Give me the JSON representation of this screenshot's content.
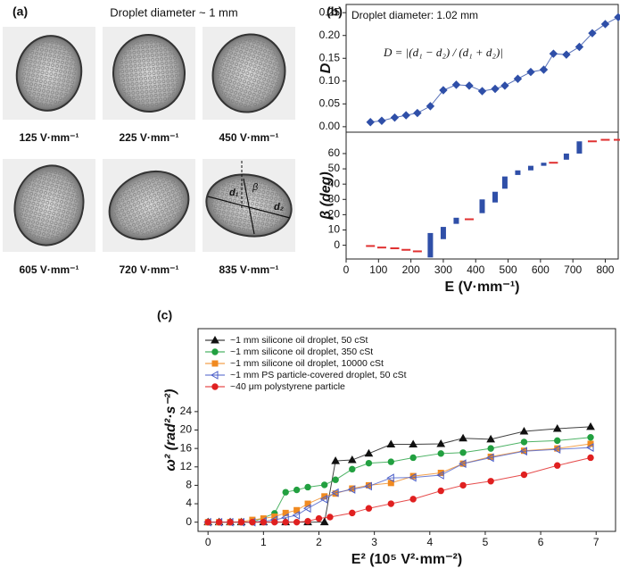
{
  "panel_a": {
    "label": "(a)",
    "title": "Droplet diameter ~ 1 mm",
    "captions": [
      "125 V·mm⁻¹",
      "225 V·mm⁻¹",
      "450 V·mm⁻¹",
      "605 V·mm⁻¹",
      "720 V·mm⁻¹",
      "835 V·mm⁻¹"
    ],
    "symbols": [
      "d₁",
      "d₂",
      "β"
    ]
  },
  "chart_data": [
    {
      "type": "line",
      "panel_label": "(b)",
      "ylabel": "D",
      "annotations": [
        "Droplet diameter: 1.02 mm",
        "D = |(d₁ − d₂) / (d₁ + d₂)|"
      ],
      "xlim": [
        0,
        840
      ],
      "ylim": [
        -0.012,
        0.268
      ],
      "yticks": [
        {
          "value": 0,
          "label": "0.00"
        },
        {
          "value": 0.05,
          "label": "0.05"
        },
        {
          "value": 0.1,
          "label": "0.10"
        },
        {
          "value": 0.15,
          "label": "0.15"
        },
        {
          "value": 0.2,
          "label": "0.20"
        },
        {
          "value": 0.25,
          "label": "0.25"
        }
      ],
      "series": [
        {
          "color": "#2f4fa8",
          "marker": "diamond",
          "x": [
            75,
            110,
            150,
            185,
            220,
            260,
            300,
            340,
            380,
            420,
            460,
            490,
            530,
            570,
            610,
            640,
            680,
            720,
            760,
            800,
            840
          ],
          "values": [
            0.01,
            0.013,
            0.02,
            0.025,
            0.03,
            0.045,
            0.08,
            0.092,
            0.09,
            0.078,
            0.083,
            0.09,
            0.105,
            0.12,
            0.125,
            0.16,
            0.158,
            0.175,
            0.205,
            0.225,
            0.24
          ]
        }
      ]
    },
    {
      "type": "range",
      "ylabel": "β (deg)",
      "xlabel": "E (V·mm⁻¹)",
      "xlim": [
        0,
        840
      ],
      "ylim": [
        -9,
        74
      ],
      "xticks": [
        0,
        100,
        200,
        300,
        400,
        500,
        600,
        700,
        800
      ],
      "yticks": [
        0,
        10,
        20,
        30,
        40,
        50,
        60
      ],
      "series": [
        {
          "color": "#e03030",
          "x": [
            75,
            110,
            150,
            185,
            220,
            380,
            640,
            760,
            800,
            840
          ],
          "values": [
            -0.5,
            -1.5,
            -2,
            -3,
            -4,
            17,
            54,
            68,
            69,
            69
          ]
        },
        {
          "color": "#2f4fa8",
          "x": [
            260,
            300,
            340,
            420,
            460,
            490,
            530,
            570,
            610,
            680,
            720
          ],
          "low": [
            -8,
            4,
            14,
            21,
            28,
            37,
            46,
            49,
            52,
            56,
            60
          ],
          "high": [
            8,
            12,
            18,
            30,
            35,
            45,
            49,
            52,
            54,
            60,
            68
          ]
        }
      ]
    },
    {
      "type": "line",
      "panel_label": "(c)",
      "ylabel": "ω² (rad²·s⁻²)",
      "xlabel": "E² (10⁵ V²·mm⁻²)",
      "xlim": [
        -0.18,
        7.35
      ],
      "ylim": [
        -2,
        42
      ],
      "xticks": [
        0,
        1,
        2,
        3,
        4,
        5,
        6,
        7
      ],
      "yticks": [
        0,
        4,
        8,
        12,
        16,
        20,
        24
      ],
      "series": [
        {
          "name": "~1 mm silicone oil droplet, 50 cSt",
          "color": "#111111",
          "marker": "triangle",
          "x": [
            0,
            0.2,
            0.4,
            0.6,
            1.0,
            1.4,
            1.8,
            2.1,
            2.3,
            2.6,
            2.9,
            3.3,
            3.7,
            4.2,
            4.6,
            5.1,
            5.7,
            6.3,
            6.9
          ],
          "values": [
            0,
            0,
            0,
            0,
            0,
            0,
            0,
            0,
            13.3,
            13.5,
            14.9,
            16.9,
            16.9,
            17,
            18.2,
            18,
            19.7,
            20.3,
            20.7
          ]
        },
        {
          "name": "~1 mm silicone oil droplet, 350 cSt",
          "color": "#22a040",
          "marker": "circle",
          "x": [
            0,
            0.2,
            0.4,
            0.6,
            0.8,
            1.2,
            1.4,
            1.6,
            1.8,
            2.1,
            2.3,
            2.6,
            2.9,
            3.3,
            3.7,
            4.2,
            4.6,
            5.1,
            5.7,
            6.3,
            6.9
          ],
          "values": [
            0,
            0,
            0,
            0,
            0,
            1.9,
            6.5,
            7,
            7.6,
            8.1,
            9.2,
            11.5,
            12.8,
            13.1,
            14,
            14.9,
            15.1,
            16,
            17.4,
            17.7,
            18.4
          ]
        },
        {
          "name": "~1 mm silicone oil droplet, 10000 cSt",
          "color": "#f08a20",
          "marker": "square",
          "x": [
            0,
            0.2,
            0.4,
            0.6,
            0.8,
            1.0,
            1.2,
            1.4,
            1.6,
            1.8,
            2.1,
            2.3,
            2.6,
            2.9,
            3.3,
            3.7,
            4.2,
            4.6,
            5.1,
            5.7,
            6.3,
            6.9
          ],
          "values": [
            0,
            0,
            0,
            0.1,
            0.5,
            0.8,
            1.2,
            2,
            2.6,
            4,
            5.6,
            6.2,
            7.3,
            8,
            8.5,
            10,
            10.7,
            12.7,
            14.2,
            15.5,
            16,
            17
          ]
        },
        {
          "name": "~1 mm PS particle-covered droplet, 50 cSt",
          "color": "#4a5ec8",
          "marker": "ltriangle",
          "x": [
            0,
            0.2,
            0.4,
            0.6,
            0.8,
            1.0,
            1.2,
            1.4,
            1.6,
            1.8,
            2.1,
            2.3,
            2.6,
            2.9,
            3.3,
            3.7,
            4.2,
            4.6,
            5.1,
            5.7,
            6.3,
            6.9
          ],
          "values": [
            0,
            0,
            0,
            0,
            0,
            0.2,
            0.5,
            1,
            1.5,
            3,
            5,
            6.4,
            7.1,
            7.8,
            9.6,
            9.7,
            10.2,
            12.7,
            14,
            15.4,
            15.8,
            16.2
          ]
        },
        {
          "name": "~40 μm polystyrene particle",
          "color": "#e02020",
          "marker": "circle",
          "x": [
            0,
            0.2,
            0.4,
            0.6,
            0.8,
            1.0,
            1.2,
            1.4,
            1.6,
            1.8,
            2.0,
            2.2,
            2.6,
            2.9,
            3.3,
            3.7,
            4.2,
            4.6,
            5.1,
            5.7,
            6.3,
            6.9
          ],
          "values": [
            0,
            0,
            0,
            0,
            0,
            0,
            0,
            0,
            0,
            0.2,
            0.8,
            1.1,
            2,
            3,
            4,
            5,
            6.8,
            8,
            8.9,
            10.3,
            12.3,
            14
          ]
        }
      ]
    }
  ]
}
